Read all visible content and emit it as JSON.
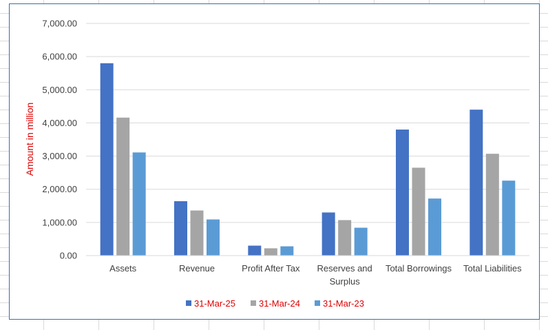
{
  "chart_data": {
    "type": "bar",
    "title": "",
    "xlabel": "",
    "ylabel": "Amount in million",
    "ylim": [
      0,
      7000
    ],
    "y_ticks": [
      "0.00",
      "1,000.00",
      "2,000.00",
      "3,000.00",
      "4,000.00",
      "5,000.00",
      "6,000.00",
      "7,000.00"
    ],
    "grid": true,
    "legend_position": "bottom",
    "categories": [
      [
        "Assets"
      ],
      [
        "Revenue"
      ],
      [
        "Profit After Tax"
      ],
      [
        "Reserves and",
        "Surplus"
      ],
      [
        "Total Borrowings"
      ],
      [
        "Total Liabilities"
      ]
    ],
    "series": [
      {
        "name": "31-Mar-25",
        "color": "#4472c4",
        "values": [
          5800,
          1640,
          300,
          1300,
          3800,
          4400
        ]
      },
      {
        "name": "31-Mar-24",
        "color": "#a5a5a5",
        "values": [
          4160,
          1360,
          220,
          1070,
          2650,
          3070
        ]
      },
      {
        "name": "31-Mar-23",
        "color": "#5b9bd5",
        "values": [
          3110,
          1090,
          280,
          840,
          1720,
          2260
        ]
      }
    ]
  }
}
